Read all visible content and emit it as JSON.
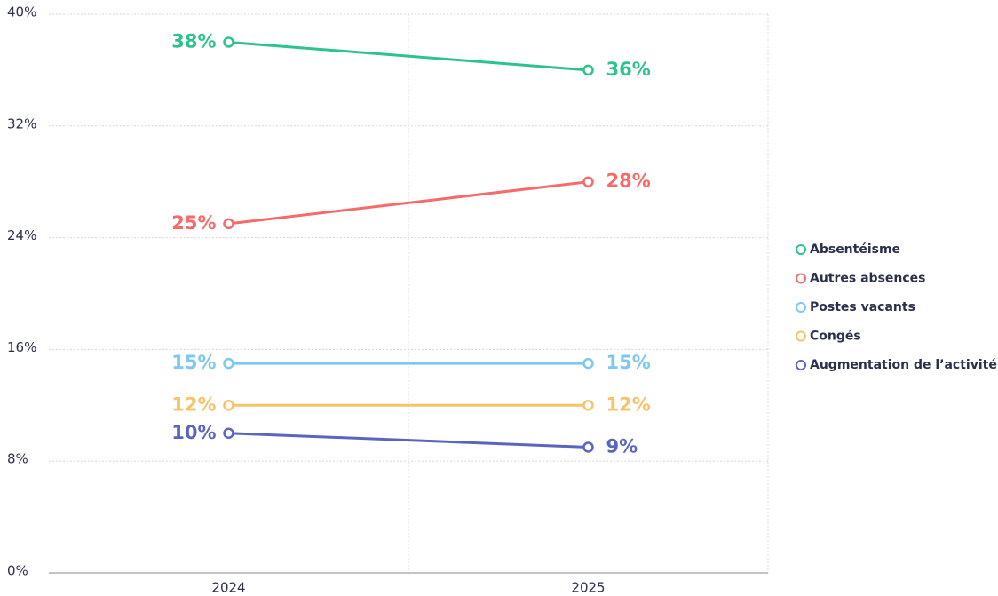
{
  "chart_data": {
    "type": "line",
    "categories": [
      "2024",
      "2025"
    ],
    "series": [
      {
        "name": "Absentéisme",
        "color": "#2ec28e",
        "values": [
          38,
          36
        ],
        "value_labels": [
          "38%",
          "36%"
        ]
      },
      {
        "name": "Autres absences",
        "color": "#f76a6a",
        "values": [
          25,
          28
        ],
        "value_labels": [
          "25%",
          "28%"
        ]
      },
      {
        "name": "Postes vacants",
        "color": "#7cc8f5",
        "values": [
          15,
          15
        ],
        "value_labels": [
          "15%",
          "15%"
        ]
      },
      {
        "name": "Congés",
        "color": "#f5c46a",
        "values": [
          12,
          12
        ],
        "value_labels": [
          "12%",
          "12%"
        ]
      },
      {
        "name": "Augmentation de l’activité",
        "color": "#5c64c2",
        "values": [
          10,
          9
        ],
        "value_labels": [
          "10%",
          "9%"
        ]
      }
    ],
    "ylim": [
      0,
      40
    ],
    "yticks": [
      {
        "value": 0,
        "label": "0%"
      },
      {
        "value": 8,
        "label": "8%"
      },
      {
        "value": 16,
        "label": "16%"
      },
      {
        "value": 24,
        "label": "24%"
      },
      {
        "value": 32,
        "label": "32%"
      },
      {
        "value": 40,
        "label": "40%"
      }
    ],
    "grid": true,
    "legend": "right"
  }
}
